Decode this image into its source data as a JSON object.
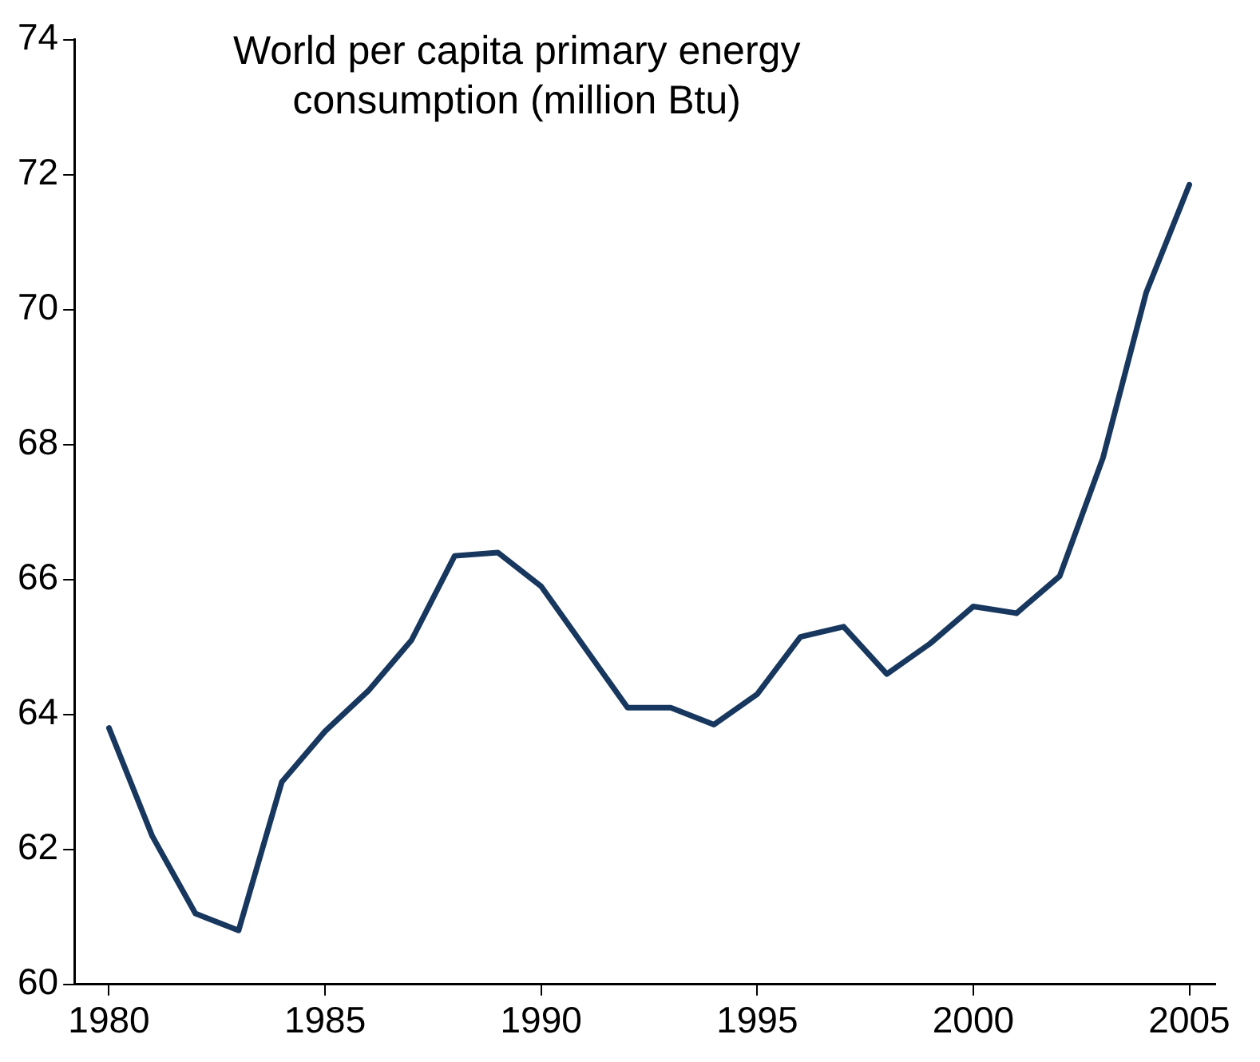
{
  "chart_data": {
    "type": "line",
    "title": "World per capita primary energy consumption (million Btu)",
    "x": [
      1980,
      1981,
      1982,
      1983,
      1984,
      1985,
      1986,
      1987,
      1988,
      1989,
      1990,
      1991,
      1992,
      1993,
      1994,
      1995,
      1996,
      1997,
      1998,
      1999,
      2000,
      2001,
      2002,
      2003,
      2004,
      2005
    ],
    "series": [
      {
        "color": "#17375e",
        "values": [
          63.8,
          62.2,
          61.05,
          60.8,
          63.0,
          63.75,
          64.35,
          65.1,
          66.35,
          66.4,
          65.9,
          65.0,
          64.1,
          64.1,
          63.85,
          64.3,
          65.15,
          65.3,
          64.6,
          65.05,
          65.6,
          65.5,
          66.05,
          67.8,
          70.25,
          71.85
        ]
      }
    ],
    "xlim": [
      1979.2,
      2005.6
    ],
    "xticks": [
      1980,
      1985,
      1990,
      1995,
      2000,
      2005
    ],
    "ylim": [
      60,
      74
    ],
    "yticks": [
      60,
      62,
      64,
      66,
      68,
      70,
      72,
      74
    ],
    "legend": false,
    "marker": "none",
    "line_style": "solid"
  }
}
